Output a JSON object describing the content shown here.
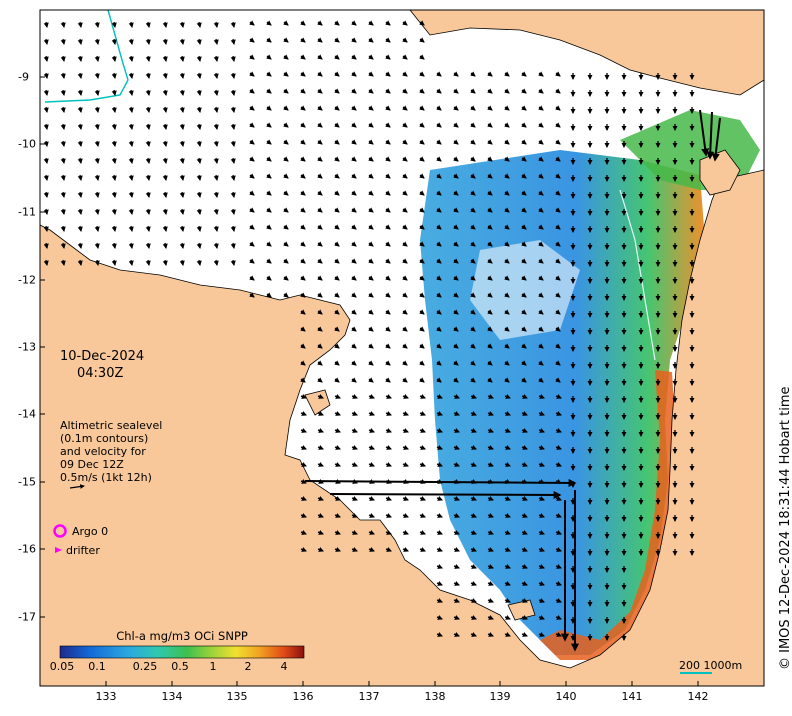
{
  "date_label": "10-Dec-2024",
  "time_label": "04:30Z",
  "info_lines": [
    "Altimetric sealevel",
    "(0.1m contours)",
    "and velocity for",
    "09 Dec 12Z",
    "0.5m/s (1kt 12h)"
  ],
  "legend": {
    "argo_label": "Argo 0",
    "drifter_label": "drifter"
  },
  "colorbar": {
    "title": "Chl-a mg/m3 OCi SNPP",
    "tick_labels": [
      "0.05",
      "0.1",
      "0.25",
      "0.5",
      "1",
      "2",
      "4"
    ]
  },
  "scale_bar_label": "200  1000m",
  "credit": "© IMOS 12-Dec-2024 18:31:44 Hobart time",
  "x_ticks": [
    "133",
    "134",
    "135",
    "136",
    "137",
    "138",
    "139",
    "140",
    "141",
    "142"
  ],
  "y_ticks": [
    "-9",
    "-10",
    "-11",
    "-12",
    "-13",
    "-14",
    "-15",
    "-16",
    "-17"
  ],
  "colors": {
    "land": "#f8c89a",
    "sea": "#ffffff",
    "argo": "#ff00ff",
    "contour": "#00c0c0"
  }
}
